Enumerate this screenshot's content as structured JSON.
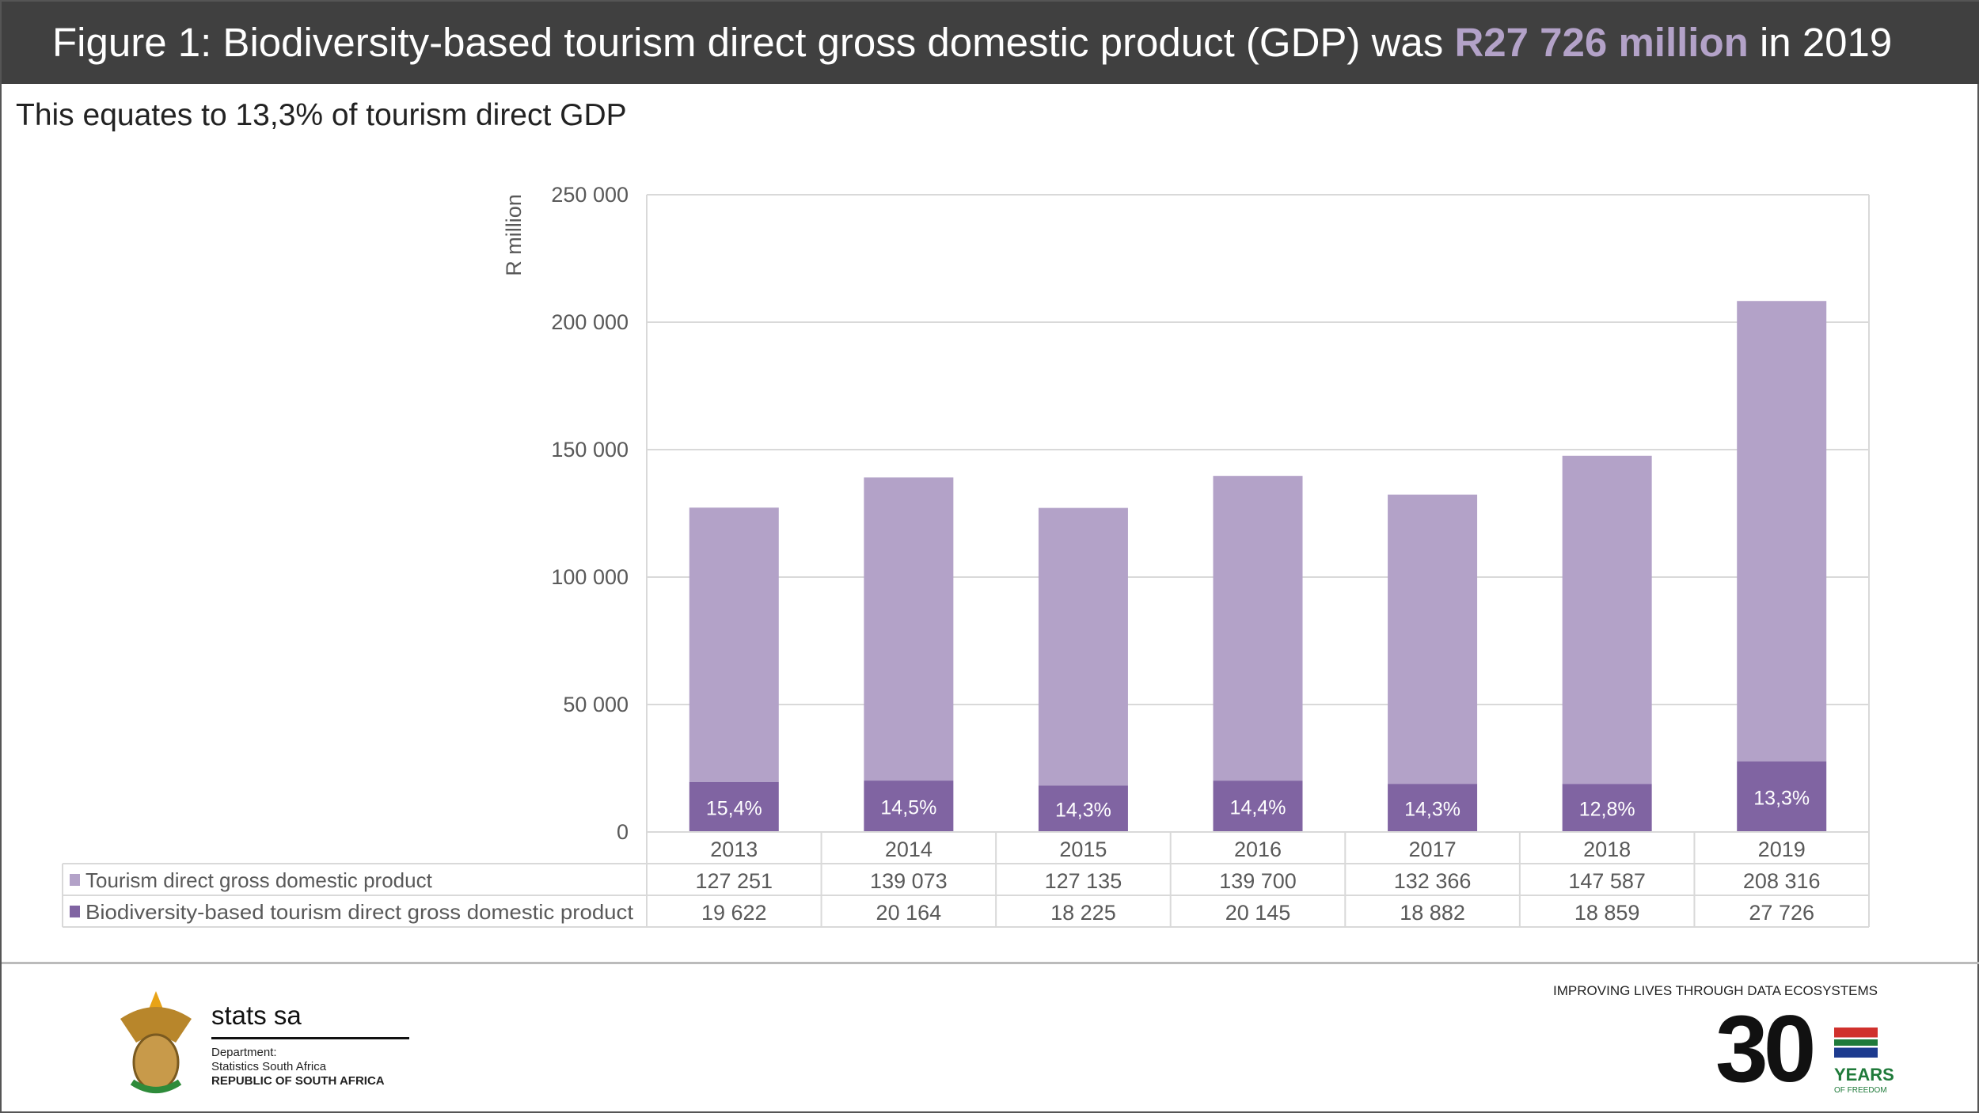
{
  "header": {
    "title_prefix": "Figure 1: Biodiversity-based tourism direct gross domestic product (GDP) was ",
    "title_highlight": "R27 726 million",
    "title_suffix": " in 2019"
  },
  "subtitle": "This equates to 13,3% of tourism direct GDP",
  "colors": {
    "header_bg": "#404040",
    "tourism": "#b3a2c8",
    "biodiversity": "#8064a2",
    "highlight": "#b3a2c8"
  },
  "chart_data": {
    "type": "bar",
    "stacked": true,
    "ylabel": "R million",
    "ylim": [
      0,
      250000
    ],
    "yticks": [
      0,
      50000,
      100000,
      150000,
      200000,
      250000
    ],
    "ytick_labels": [
      "0",
      "50 000",
      "100 000",
      "150 000",
      "200 000",
      "250 000"
    ],
    "grid": true,
    "legend": "data-table-bottom",
    "categories": [
      "2013",
      "2014",
      "2015",
      "2016",
      "2017",
      "2018",
      "2019"
    ],
    "series": [
      {
        "name": "Tourism direct gross domestic product",
        "values": [
          127251,
          139073,
          127135,
          139700,
          132366,
          147587,
          208316
        ],
        "labels": [
          "127 251",
          "139 073",
          "127 135",
          "139 700",
          "132 366",
          "147 587",
          "208 316"
        ],
        "color": "#b3a2c8"
      },
      {
        "name": "Biodiversity-based tourism direct gross domestic product",
        "values": [
          19622,
          20164,
          18225,
          20145,
          18882,
          18859,
          27726
        ],
        "labels": [
          "19 622",
          "20 164",
          "18 225",
          "20 145",
          "18 882",
          "18 859",
          "27 726"
        ],
        "color": "#8064a2"
      }
    ],
    "data_labels": [
      "15,4%",
      "14,5%",
      "14,3%",
      "14,4%",
      "14,3%",
      "12,8%",
      "13,3%"
    ]
  },
  "footer": {
    "stats": "stats sa",
    "dept_line1": "Department:",
    "dept_line2": "Statistics South Africa",
    "dept_line3": "REPUBLIC OF SOUTH AFRICA",
    "tagline": "IMPROVING LIVES THROUGH DATA ECOSYSTEMS",
    "thirty": "30",
    "years": "YEARS",
    "freedom": "OF FREEDOM"
  }
}
